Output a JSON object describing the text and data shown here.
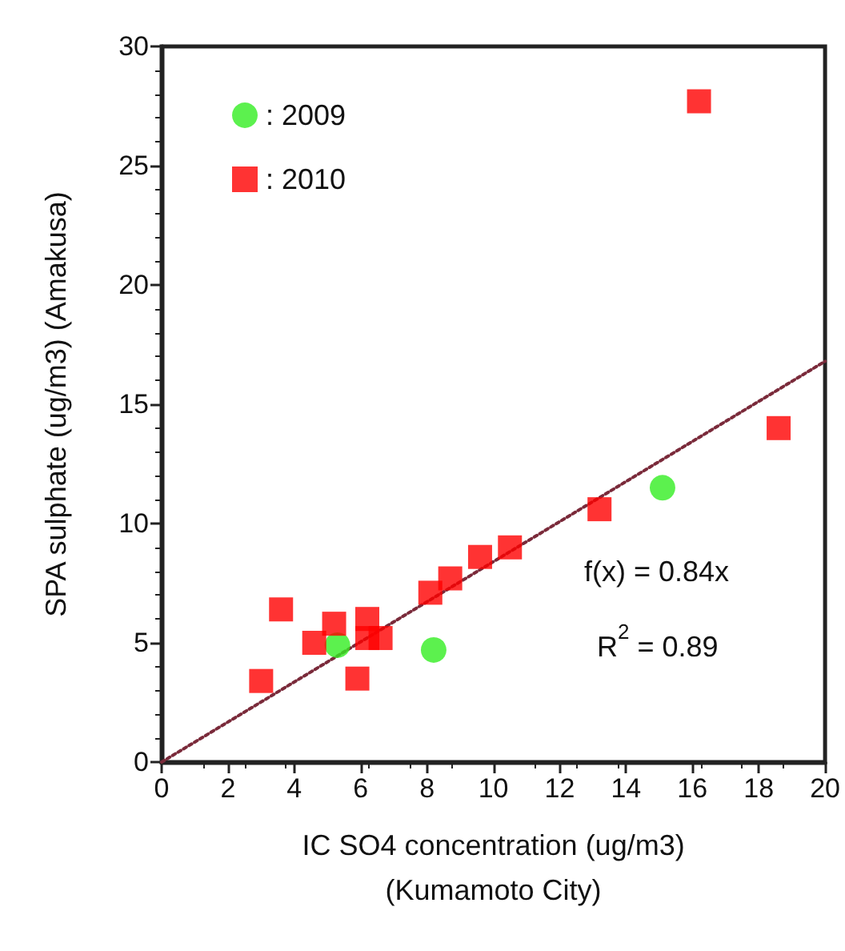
{
  "chart_data": {
    "type": "scatter",
    "xlabel": "IC SO4 concentration (ug/m3)\n(Kumamoto City)",
    "ylabel": "SPA sulphate (ug/m3) (Amakusa)",
    "xlim": [
      0,
      20
    ],
    "xticks": [
      0,
      2,
      4,
      6,
      8,
      10,
      12,
      14,
      16,
      18,
      20
    ],
    "ylim": [
      0,
      30
    ],
    "yticks": [
      0,
      5,
      10,
      15,
      20,
      25,
      30
    ],
    "grid": false,
    "legend": "top left",
    "series": [
      {
        "name": ": 2009",
        "color": "#33ee22",
        "marker": "circle",
        "x": [
          5.3,
          8.2,
          15.1
        ],
        "values": [
          4.9,
          4.7,
          11.5
        ]
      },
      {
        "name": ": 2010",
        "color": "#ff0000",
        "marker": "square",
        "x": [
          3.0,
          3.6,
          4.6,
          5.2,
          5.9,
          6.2,
          6.2,
          6.6,
          8.1,
          8.7,
          9.6,
          10.5,
          13.2,
          16.2,
          18.6
        ],
        "values": [
          3.4,
          6.4,
          5.0,
          5.8,
          3.5,
          6.0,
          5.2,
          5.2,
          7.1,
          7.7,
          8.6,
          9.0,
          10.6,
          27.7,
          14.0
        ]
      },
      {
        "type": "line",
        "color": "#7a2a3a",
        "marker": "none",
        "line_style": "dotted",
        "x": [
          0,
          20
        ],
        "values": [
          0,
          16.8
        ]
      }
    ],
    "annotations": [
      "f(x) = 0.84x",
      "R$^{2}$ = 0.89"
    ]
  }
}
